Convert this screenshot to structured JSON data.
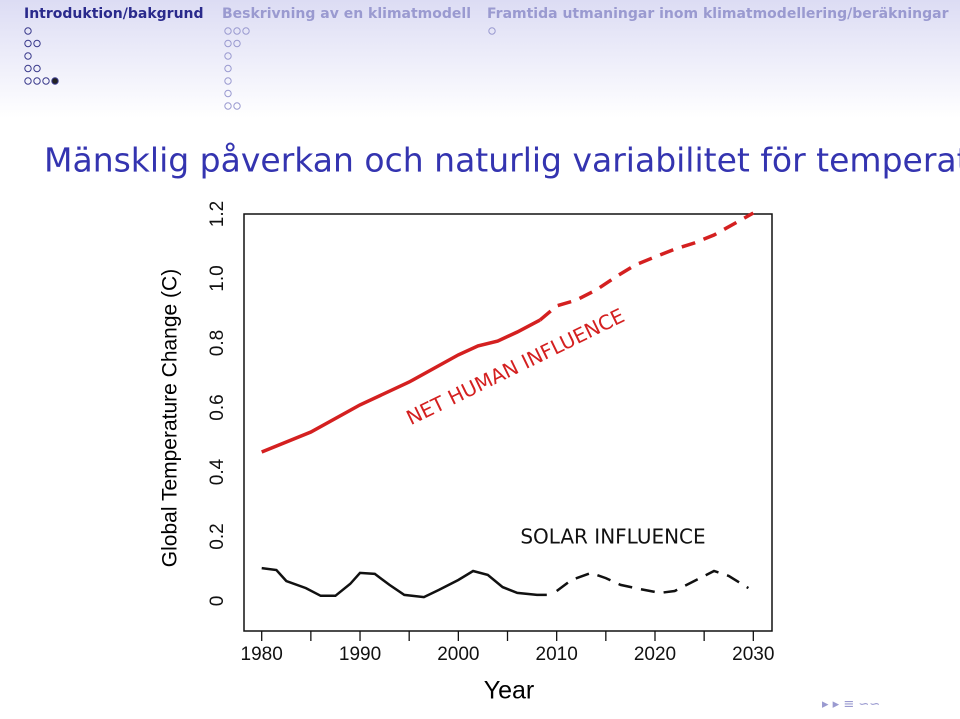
{
  "header": {
    "sections": [
      "Introduktion/bakgrund",
      "Beskrivning av en klimatmodell",
      "Framtida utmaningar inom klimatmodellering/beräkningar"
    ]
  },
  "chart_data": {
    "type": "line",
    "title": "Mänsklig påverkan och naturlig variabilitet för temperatur",
    "xlabel": "Year",
    "ylabel": "Global Temperature Change (C)",
    "xlim": [
      1978.2,
      2031.9
    ],
    "ylim": [
      -0.093,
      1.2
    ],
    "xticks": [
      1980,
      1990,
      2000,
      2010,
      2020,
      2030
    ],
    "xminor_ticks": [
      1985,
      1995,
      2005,
      2015,
      2025
    ],
    "yticks": [
      0,
      0.2,
      0.4,
      0.6,
      0.8,
      {
        "value": 1,
        "label": "1.0"
      },
      1.2
    ],
    "series": [
      {
        "color": "#d42020",
        "dash": false,
        "x": [
          1980,
          1985,
          1990,
          1995,
          2000,
          2002,
          2004,
          2006,
          2008.3
        ],
        "values": [
          0.462,
          0.524,
          0.608,
          0.679,
          0.763,
          0.791,
          0.806,
          0.834,
          0.871
        ]
      },
      {
        "color": "#d42020",
        "dash": true,
        "x": [
          2008.3,
          2010,
          2012,
          2014,
          2016,
          2018,
          2020,
          2022,
          2024,
          2026,
          2028,
          2030
        ],
        "values": [
          0.871,
          0.915,
          0.933,
          0.964,
          1.005,
          1.042,
          1.067,
          1.091,
          1.11,
          1.135,
          1.169,
          1.203
        ]
      },
      {
        "color": "#111111",
        "dash": false,
        "x": [
          1980,
          1981.5,
          1982.5,
          1984.5,
          1986,
          1987.5,
          1989,
          1990,
          1991.5,
          1993,
          1994.5,
          1996.5,
          1998,
          2000,
          2001.5,
          2003,
          2004.5,
          2006,
          2008,
          2009
        ],
        "values": [
          0.102,
          0.096,
          0.062,
          0.04,
          0.016,
          0.016,
          0.053,
          0.087,
          0.084,
          0.05,
          0.019,
          0.012,
          0.034,
          0.065,
          0.093,
          0.081,
          0.043,
          0.025,
          0.019,
          0.019
        ]
      },
      {
        "color": "#111111",
        "dash": true,
        "x": [
          2010,
          2011.5,
          2013.5,
          2015,
          2016.5,
          2018.5,
          2020.5,
          2022,
          2024,
          2026,
          2027.5,
          2029.5
        ],
        "values": [
          0.031,
          0.065,
          0.087,
          0.071,
          0.05,
          0.037,
          0.025,
          0.031,
          0.062,
          0.093,
          0.078,
          0.04
        ]
      }
    ],
    "annotations": [
      {
        "text": "NET HUMAN INFLUENCE",
        "color": "#d42020"
      },
      {
        "text": "SOLAR INFLUENCE",
        "color": "#111111"
      }
    ]
  }
}
